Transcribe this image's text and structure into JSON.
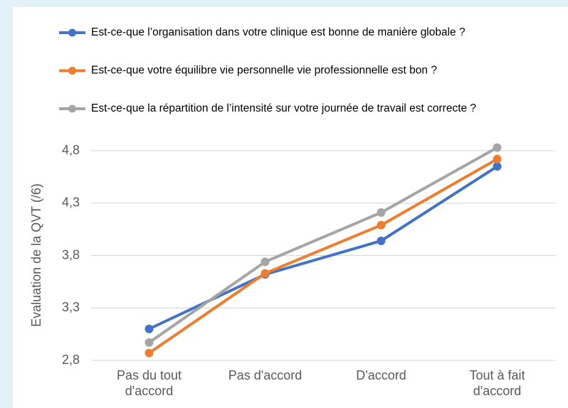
{
  "chart_data": {
    "type": "line",
    "y_label": "Evaluation de la QVT (/6)",
    "categories": [
      "Pas du tout d'accord",
      "Pas d'accord",
      "D'accord",
      "Tout à fait d'accord"
    ],
    "series": [
      {
        "name": "Est-ce-que l’organisation dans votre clinique est bonne de manière globale ?",
        "color": "#4472c4",
        "values": [
          3.1,
          3.62,
          3.94,
          4.65
        ]
      },
      {
        "name": "Est-ce-que votre équilibre vie personnelle vie professionnelle est bon ?",
        "color": "#ed7d31",
        "values": [
          2.87,
          3.63,
          4.09,
          4.72
        ]
      },
      {
        "name": "Est-ce-que la répartition de l’intensité sur votre journée de travail est correcte ?",
        "color": "#a5a5a5",
        "values": [
          2.97,
          3.74,
          4.21,
          4.83
        ]
      }
    ],
    "ylim": [
      2.8,
      4.8
    ],
    "yticks": [
      {
        "value": 2.8,
        "label": "2,8"
      },
      {
        "value": 3.3,
        "label": "3,3"
      },
      {
        "value": 3.8,
        "label": "3,8"
      },
      {
        "value": 4.3,
        "label": "4,3"
      },
      {
        "value": 4.8,
        "label": "4,8"
      }
    ],
    "grid": true,
    "legend": "top"
  }
}
